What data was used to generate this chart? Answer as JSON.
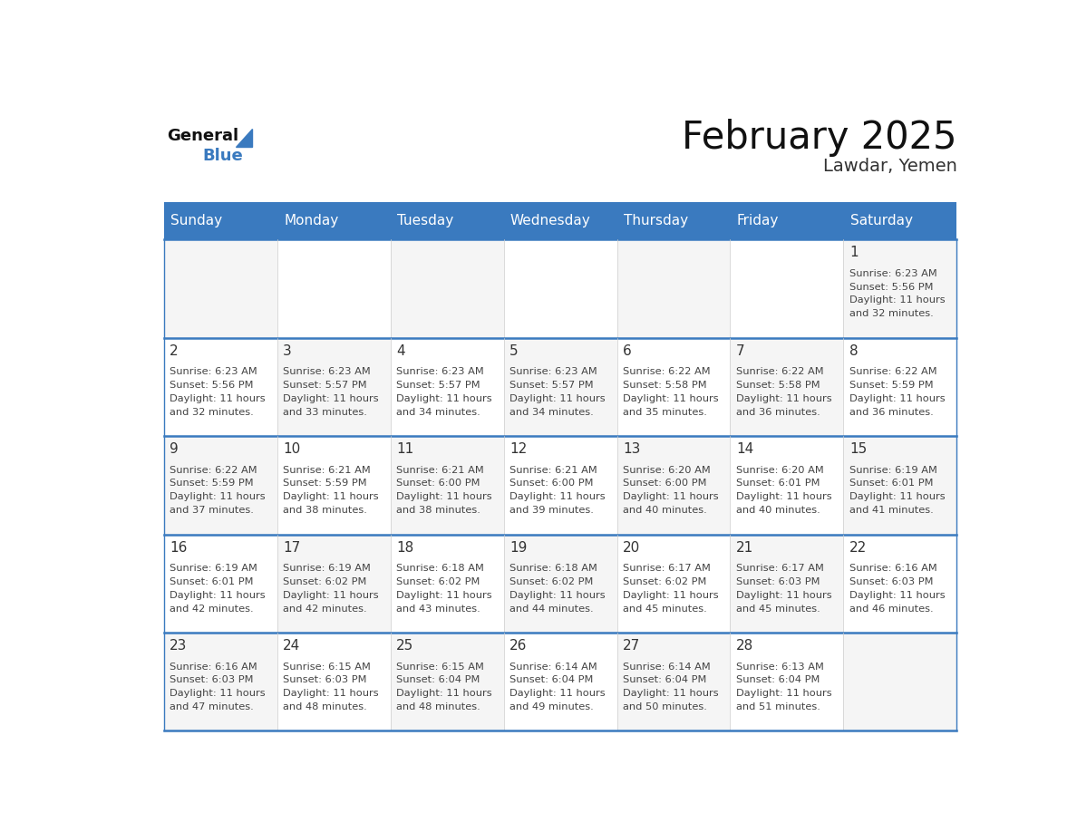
{
  "title": "February 2025",
  "subtitle": "Lawdar, Yemen",
  "header_bg_color": "#3a7abf",
  "header_text_color": "#ffffff",
  "cell_bg_color": "#f5f5f5",
  "cell_bg_color_alt": "#ffffff",
  "separator_color": "#3a7abf",
  "day_number_color": "#333333",
  "info_text_color": "#444444",
  "grid_line_color": "#cccccc",
  "weekdays": [
    "Sunday",
    "Monday",
    "Tuesday",
    "Wednesday",
    "Thursday",
    "Friday",
    "Saturday"
  ],
  "days": [
    {
      "day": 1,
      "col": 6,
      "row": 0,
      "sunrise": "6:23 AM",
      "sunset": "5:56 PM",
      "daylight": "11 hours and 32 minutes."
    },
    {
      "day": 2,
      "col": 0,
      "row": 1,
      "sunrise": "6:23 AM",
      "sunset": "5:56 PM",
      "daylight": "11 hours and 32 minutes."
    },
    {
      "day": 3,
      "col": 1,
      "row": 1,
      "sunrise": "6:23 AM",
      "sunset": "5:57 PM",
      "daylight": "11 hours and 33 minutes."
    },
    {
      "day": 4,
      "col": 2,
      "row": 1,
      "sunrise": "6:23 AM",
      "sunset": "5:57 PM",
      "daylight": "11 hours and 34 minutes."
    },
    {
      "day": 5,
      "col": 3,
      "row": 1,
      "sunrise": "6:23 AM",
      "sunset": "5:57 PM",
      "daylight": "11 hours and 34 minutes."
    },
    {
      "day": 6,
      "col": 4,
      "row": 1,
      "sunrise": "6:22 AM",
      "sunset": "5:58 PM",
      "daylight": "11 hours and 35 minutes."
    },
    {
      "day": 7,
      "col": 5,
      "row": 1,
      "sunrise": "6:22 AM",
      "sunset": "5:58 PM",
      "daylight": "11 hours and 36 minutes."
    },
    {
      "day": 8,
      "col": 6,
      "row": 1,
      "sunrise": "6:22 AM",
      "sunset": "5:59 PM",
      "daylight": "11 hours and 36 minutes."
    },
    {
      "day": 9,
      "col": 0,
      "row": 2,
      "sunrise": "6:22 AM",
      "sunset": "5:59 PM",
      "daylight": "11 hours and 37 minutes."
    },
    {
      "day": 10,
      "col": 1,
      "row": 2,
      "sunrise": "6:21 AM",
      "sunset": "5:59 PM",
      "daylight": "11 hours and 38 minutes."
    },
    {
      "day": 11,
      "col": 2,
      "row": 2,
      "sunrise": "6:21 AM",
      "sunset": "6:00 PM",
      "daylight": "11 hours and 38 minutes."
    },
    {
      "day": 12,
      "col": 3,
      "row": 2,
      "sunrise": "6:21 AM",
      "sunset": "6:00 PM",
      "daylight": "11 hours and 39 minutes."
    },
    {
      "day": 13,
      "col": 4,
      "row": 2,
      "sunrise": "6:20 AM",
      "sunset": "6:00 PM",
      "daylight": "11 hours and 40 minutes."
    },
    {
      "day": 14,
      "col": 5,
      "row": 2,
      "sunrise": "6:20 AM",
      "sunset": "6:01 PM",
      "daylight": "11 hours and 40 minutes."
    },
    {
      "day": 15,
      "col": 6,
      "row": 2,
      "sunrise": "6:19 AM",
      "sunset": "6:01 PM",
      "daylight": "11 hours and 41 minutes."
    },
    {
      "day": 16,
      "col": 0,
      "row": 3,
      "sunrise": "6:19 AM",
      "sunset": "6:01 PM",
      "daylight": "11 hours and 42 minutes."
    },
    {
      "day": 17,
      "col": 1,
      "row": 3,
      "sunrise": "6:19 AM",
      "sunset": "6:02 PM",
      "daylight": "11 hours and 42 minutes."
    },
    {
      "day": 18,
      "col": 2,
      "row": 3,
      "sunrise": "6:18 AM",
      "sunset": "6:02 PM",
      "daylight": "11 hours and 43 minutes."
    },
    {
      "day": 19,
      "col": 3,
      "row": 3,
      "sunrise": "6:18 AM",
      "sunset": "6:02 PM",
      "daylight": "11 hours and 44 minutes."
    },
    {
      "day": 20,
      "col": 4,
      "row": 3,
      "sunrise": "6:17 AM",
      "sunset": "6:02 PM",
      "daylight": "11 hours and 45 minutes."
    },
    {
      "day": 21,
      "col": 5,
      "row": 3,
      "sunrise": "6:17 AM",
      "sunset": "6:03 PM",
      "daylight": "11 hours and 45 minutes."
    },
    {
      "day": 22,
      "col": 6,
      "row": 3,
      "sunrise": "6:16 AM",
      "sunset": "6:03 PM",
      "daylight": "11 hours and 46 minutes."
    },
    {
      "day": 23,
      "col": 0,
      "row": 4,
      "sunrise": "6:16 AM",
      "sunset": "6:03 PM",
      "daylight": "11 hours and 47 minutes."
    },
    {
      "day": 24,
      "col": 1,
      "row": 4,
      "sunrise": "6:15 AM",
      "sunset": "6:03 PM",
      "daylight": "11 hours and 48 minutes."
    },
    {
      "day": 25,
      "col": 2,
      "row": 4,
      "sunrise": "6:15 AM",
      "sunset": "6:04 PM",
      "daylight": "11 hours and 48 minutes."
    },
    {
      "day": 26,
      "col": 3,
      "row": 4,
      "sunrise": "6:14 AM",
      "sunset": "6:04 PM",
      "daylight": "11 hours and 49 minutes."
    },
    {
      "day": 27,
      "col": 4,
      "row": 4,
      "sunrise": "6:14 AM",
      "sunset": "6:04 PM",
      "daylight": "11 hours and 50 minutes."
    },
    {
      "day": 28,
      "col": 5,
      "row": 4,
      "sunrise": "6:13 AM",
      "sunset": "6:04 PM",
      "daylight": "11 hours and 51 minutes."
    }
  ],
  "num_rows": 5,
  "num_cols": 7,
  "logo_triangle_color": "#3a7abf"
}
